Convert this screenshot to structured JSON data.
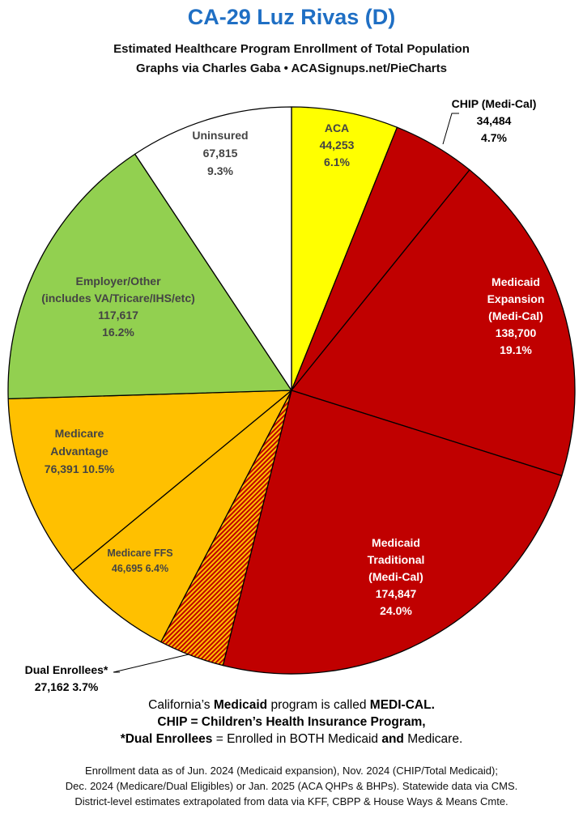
{
  "title": "CA-29 Luz Rivas (D)",
  "subtitle1": "Estimated Healthcare Program Enrollment of Total Population",
  "subtitle2": "Graphs via Charles Gaba  •  ACASignups.net/PieCharts",
  "chart_data": {
    "type": "pie",
    "title": "CA-29 Luz Rivas (D)",
    "start_angle": "12 o'clock, clockwise",
    "slices": [
      {
        "name": "ACA",
        "label": [
          "ACA",
          "44,253",
          "6.1%"
        ],
        "value": 44253,
        "percent": 6.1,
        "color": "#ffff00",
        "text_color": "#444444"
      },
      {
        "name": "CHIP (Medi-Cal)",
        "label": [
          "CHIP (Medi-Cal)",
          "34,484",
          "4.7%"
        ],
        "value": 34484,
        "percent": 4.7,
        "color": "#c00000",
        "text_color": "#000000",
        "callout": true
      },
      {
        "name": "Medicaid Expansion (Medi-Cal)",
        "label": [
          "Medicaid",
          "Expansion",
          "(Medi-Cal)",
          "138,700",
          "19.1%"
        ],
        "value": 138700,
        "percent": 19.1,
        "color": "#c00000",
        "text_color": "#ffffff"
      },
      {
        "name": "Medicaid Traditional (Medi-Cal)",
        "label": [
          "Medicaid",
          "Traditional",
          "(Medi-Cal)",
          "174,847",
          "24.0%"
        ],
        "value": 174847,
        "percent": 24.0,
        "color": "#c00000",
        "text_color": "#ffffff"
      },
      {
        "name": "Dual Enrollees*",
        "label": [
          "Dual Enrollees*",
          "27,162 3.7%"
        ],
        "value": 27162,
        "percent": 3.7,
        "color": "#c00000",
        "hatch": "#ffc000",
        "text_color": "#000000",
        "callout": true
      },
      {
        "name": "Medicare FFS",
        "label": [
          "Medicare FFS",
          "46,695 6.4%"
        ],
        "value": 46695,
        "percent": 6.4,
        "color": "#ffc000",
        "text_color": "#444444"
      },
      {
        "name": "Medicare Advantage",
        "label": [
          "Medicare",
          "Advantage",
          "76,391 10.5%"
        ],
        "value": 76391,
        "percent": 10.5,
        "color": "#ffc000",
        "text_color": "#444444"
      },
      {
        "name": "Employer/Other (includes VA/Tricare/IHS/etc)",
        "label": [
          "Employer/Other",
          "(includes VA/Tricare/IHS/etc)",
          "117,617",
          "16.2%"
        ],
        "value": 117617,
        "percent": 16.2,
        "color": "#92d050",
        "text_color": "#444444"
      },
      {
        "name": "Uninsured",
        "label": [
          "Uninsured",
          "67,815",
          "9.3%"
        ],
        "value": 67815,
        "percent": 9.3,
        "color": "#ffffff",
        "text_color": "#444444"
      }
    ]
  },
  "notes": {
    "n1": {
      "a": "California’s ",
      "b": "Medicaid",
      "c": " program is called ",
      "d": "MEDI-CAL."
    },
    "n2": "CHIP = Children’s Health Insurance Program,",
    "n3": {
      "a": "*Dual Enrollees",
      "b": " = Enrolled in BOTH Medicaid ",
      "c": "and",
      "d": " Medicare."
    }
  },
  "footer": [
    "Enrollment data as of Jun. 2024 (Medicaid expansion), Nov. 2024 (CHIP/Total Medicaid);",
    "Dec. 2024 (Medicare/Dual Eligibles) or Jan. 2025 (ACA QHPs & BHPs). Statewide data via CMS.",
    "District-level estimates extrapolated from data via KFF, CBPP & House Ways & Means Cmte."
  ]
}
